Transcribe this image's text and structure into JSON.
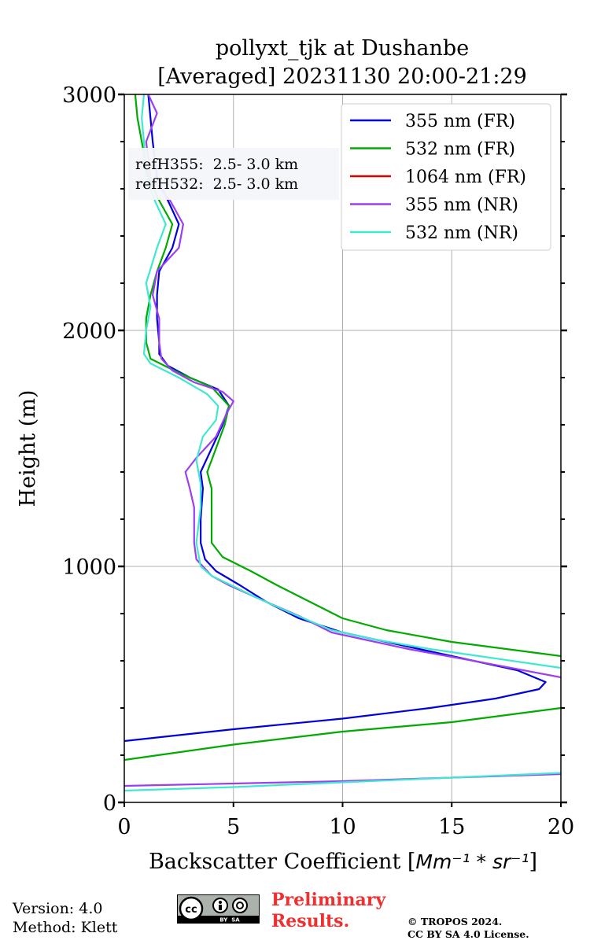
{
  "chart_data": {
    "type": "line",
    "title_line1": "pollyxt_tjk at Dushanbe",
    "title_line2": "[Averaged] 20231130 20:00-21:29",
    "xlabel_text": "Backscatter Coefficient [",
    "xlabel_unit": "Mm⁻¹ * sr⁻¹",
    "xlabel_close": "]",
    "ylabel": "Height (m)",
    "xlim": [
      0,
      20
    ],
    "ylim": [
      0,
      3000
    ],
    "xticks": [
      0,
      5,
      10,
      15,
      20
    ],
    "yticks": [
      0,
      1000,
      2000,
      3000
    ],
    "yminor_step": 200,
    "grid": true,
    "legend_position": "top-right",
    "annotation_lines": [
      "refH355:  2.5- 3.0 km",
      "refH532:  2.5- 3.0 km"
    ],
    "series": [
      {
        "name": "355 nm (FR)",
        "color": "#0000dd",
        "points": [
          [
            0,
            260
          ],
          [
            5,
            310
          ],
          [
            10,
            355
          ],
          [
            14,
            400
          ],
          [
            17,
            440
          ],
          [
            19,
            480
          ],
          [
            19.3,
            510
          ],
          [
            18,
            560
          ],
          [
            15,
            620
          ],
          [
            13,
            660
          ],
          [
            10,
            720
          ],
          [
            8,
            780
          ],
          [
            6.5,
            850
          ],
          [
            5.3,
            920
          ],
          [
            4.2,
            980
          ],
          [
            3.7,
            1030
          ],
          [
            3.5,
            1100
          ],
          [
            3.5,
            1200
          ],
          [
            3.6,
            1330
          ],
          [
            3.5,
            1400
          ],
          [
            4,
            1500
          ],
          [
            4.5,
            1600
          ],
          [
            4.8,
            1680
          ],
          [
            4.3,
            1750
          ],
          [
            3,
            1800
          ],
          [
            2,
            1850
          ],
          [
            1.6,
            1900
          ],
          [
            1.6,
            1950
          ],
          [
            1.5,
            2050
          ],
          [
            1.5,
            2150
          ],
          [
            1.6,
            2250
          ],
          [
            2.2,
            2350
          ],
          [
            2.5,
            2450
          ],
          [
            2,
            2550
          ],
          [
            1.5,
            2650
          ],
          [
            1.3,
            2800
          ],
          [
            1.2,
            2900
          ],
          [
            1.1,
            3000
          ]
        ]
      },
      {
        "name": "532 nm (FR)",
        "color": "#00aa00",
        "points": [
          [
            0,
            180
          ],
          [
            5,
            245
          ],
          [
            10,
            300
          ],
          [
            15,
            340
          ],
          [
            20,
            400
          ]
        ],
        "segments": [
          [
            [
              0,
              180
            ],
            [
              5,
              245
            ],
            [
              10,
              300
            ],
            [
              15,
              340
            ],
            [
              20,
              400
            ]
          ],
          [
            [
              20,
              620
            ],
            [
              15,
              680
            ],
            [
              12,
              730
            ],
            [
              10,
              780
            ],
            [
              8.5,
              850
            ],
            [
              7,
              920
            ],
            [
              5.8,
              980
            ],
            [
              4.5,
              1040
            ],
            [
              4,
              1100
            ],
            [
              4,
              1200
            ],
            [
              4,
              1330
            ],
            [
              3.8,
              1400
            ],
            [
              4.2,
              1500
            ],
            [
              4.6,
              1600
            ],
            [
              4.8,
              1680
            ],
            [
              4,
              1760
            ],
            [
              2.5,
              1820
            ],
            [
              1.2,
              1880
            ],
            [
              1,
              1950
            ],
            [
              1,
              2050
            ],
            [
              1.2,
              2150
            ],
            [
              1.5,
              2250
            ],
            [
              1.9,
              2350
            ],
            [
              2.2,
              2450
            ],
            [
              1.6,
              2550
            ],
            [
              1.1,
              2650
            ],
            [
              0.8,
              2800
            ],
            [
              0.6,
              2900
            ],
            [
              0.5,
              3000
            ]
          ]
        ]
      },
      {
        "name": "1064 nm (FR)",
        "color": "#dd0000",
        "points": []
      },
      {
        "name": "355 nm (NR)",
        "color": "#9b3ff0",
        "segments": [
          [
            [
              0,
              70
            ],
            [
              5,
              80
            ],
            [
              10,
              90
            ],
            [
              15,
              105
            ],
            [
              20,
              120
            ]
          ],
          [
            [
              20,
              530
            ],
            [
              16,
              600
            ],
            [
              13,
              650
            ],
            [
              11,
              690
            ],
            [
              9.5,
              720
            ],
            [
              8,
              790
            ],
            [
              6,
              870
            ],
            [
              4.8,
              920
            ],
            [
              4,
              960
            ],
            [
              3.3,
              1030
            ],
            [
              3.2,
              1100
            ],
            [
              3.2,
              1250
            ],
            [
              3,
              1330
            ],
            [
              2.8,
              1400
            ],
            [
              3.3,
              1460
            ],
            [
              4.2,
              1550
            ],
            [
              4.7,
              1650
            ],
            [
              5,
              1700
            ],
            [
              4.5,
              1740
            ],
            [
              3.2,
              1780
            ],
            [
              2.2,
              1830
            ],
            [
              1.7,
              1880
            ],
            [
              1.6,
              1950
            ],
            [
              1.6,
              2050
            ],
            [
              1.3,
              2150
            ],
            [
              1.5,
              2250
            ],
            [
              2.5,
              2350
            ],
            [
              2.7,
              2450
            ],
            [
              2.1,
              2550
            ],
            [
              1.2,
              2650
            ],
            [
              1,
              2800
            ],
            [
              1.5,
              2920
            ],
            [
              1.1,
              3000
            ]
          ]
        ]
      },
      {
        "name": "532 nm (NR)",
        "color": "#40e8d0",
        "segments": [
          [
            [
              0,
              50
            ],
            [
              5,
              65
            ],
            [
              10,
              85
            ],
            [
              15,
              105
            ],
            [
              20,
              125
            ]
          ],
          [
            [
              20,
              570
            ],
            [
              17,
              610
            ],
            [
              14,
              650
            ],
            [
              11.5,
              690
            ],
            [
              9.5,
              730
            ],
            [
              7.7,
              800
            ],
            [
              6,
              870
            ],
            [
              4.9,
              920
            ],
            [
              4,
              960
            ],
            [
              3.5,
              1000
            ],
            [
              3.3,
              1100
            ],
            [
              3.5,
              1250
            ],
            [
              3.5,
              1350
            ],
            [
              3.3,
              1450
            ],
            [
              3.6,
              1550
            ],
            [
              4.2,
              1620
            ],
            [
              4.3,
              1680
            ],
            [
              3.8,
              1730
            ],
            [
              2.5,
              1800
            ],
            [
              1.2,
              1860
            ],
            [
              0.9,
              1900
            ],
            [
              1,
              2000
            ],
            [
              1.2,
              2100
            ],
            [
              1,
              2200
            ],
            [
              1.5,
              2350
            ],
            [
              1.9,
              2450
            ],
            [
              1.4,
              2550
            ],
            [
              1,
              2650
            ],
            [
              0.9,
              2800
            ],
            [
              0.8,
              2900
            ],
            [
              0.9,
              3000
            ]
          ]
        ]
      }
    ]
  },
  "footer": {
    "version": "Version: 4.0",
    "method": "Method: Klett",
    "preliminary_line1": "Preliminary",
    "preliminary_line2": "Results.",
    "copyright_line1": "© TROPOS 2024.",
    "copyright_line2": "CC BY SA 4.0 License.",
    "cc_badge_text": "BY  SA"
  }
}
